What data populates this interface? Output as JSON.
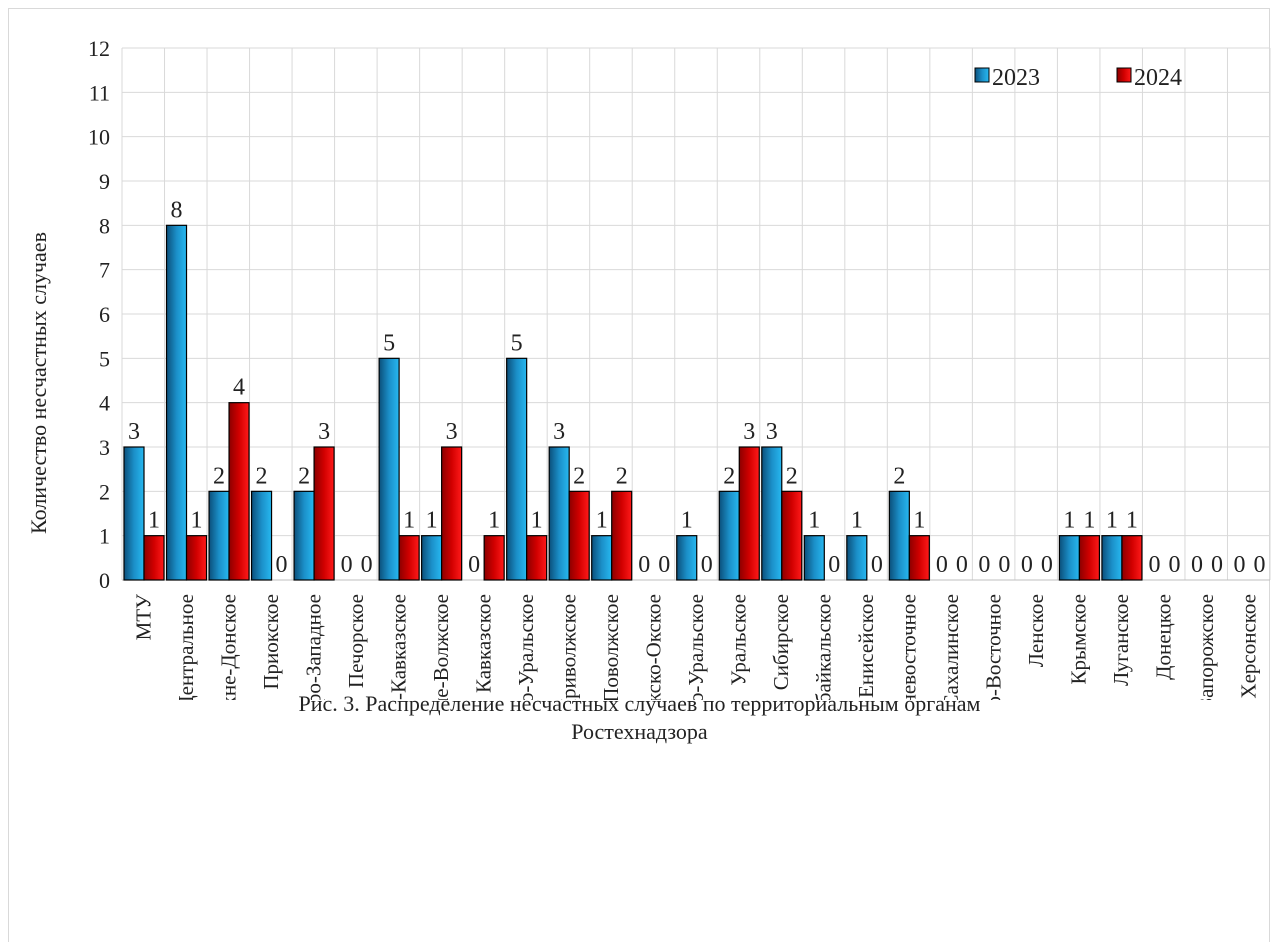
{
  "chart_data": {
    "type": "bar",
    "ylabel": "Количество несчастных случаев",
    "xlabel": "",
    "ylim": [
      0,
      12
    ],
    "yticks": [
      0,
      1,
      2,
      3,
      4,
      5,
      6,
      7,
      8,
      9,
      10,
      11,
      12
    ],
    "grid": true,
    "legend_position": "top-right",
    "categories": [
      "МТУ",
      "Центральное",
      "Верхне-Донское",
      "Приокское",
      "Северо-Западное",
      "Печорское",
      "Северо-Кавказское",
      "Нижне-Волжское",
      "Кавказское",
      "Западно-Уральское",
      "Приволжское",
      "Средне-Поволжское",
      "Волжско-Окское",
      "Северо-Уральское",
      "Уральское",
      "Сибирское",
      "Забайкальское",
      "Енисейское",
      "Дальневосточное",
      "Сахалинское",
      "Северо-Восточное",
      "Ленское",
      "Крымское",
      "Луганское",
      "Донецкое",
      "Запорожское",
      "Херсонское"
    ],
    "series": [
      {
        "name": "2023",
        "color": "#1aa3e0",
        "values": [
          3,
          8,
          2,
          2,
          2,
          0,
          5,
          1,
          0,
          5,
          3,
          1,
          0,
          1,
          2,
          3,
          1,
          1,
          2,
          0,
          0,
          0,
          1,
          1,
          0,
          0,
          0
        ]
      },
      {
        "name": "2024",
        "color": "#e01010",
        "values": [
          1,
          1,
          4,
          0,
          3,
          0,
          1,
          3,
          1,
          1,
          2,
          2,
          0,
          0,
          3,
          2,
          0,
          0,
          1,
          0,
          0,
          0,
          1,
          1,
          0,
          0,
          0
        ]
      }
    ]
  },
  "caption": {
    "line1": "Рис. 3. Распределение несчастных случаев по территориальным органам",
    "line2": "Ростехнадзора"
  }
}
